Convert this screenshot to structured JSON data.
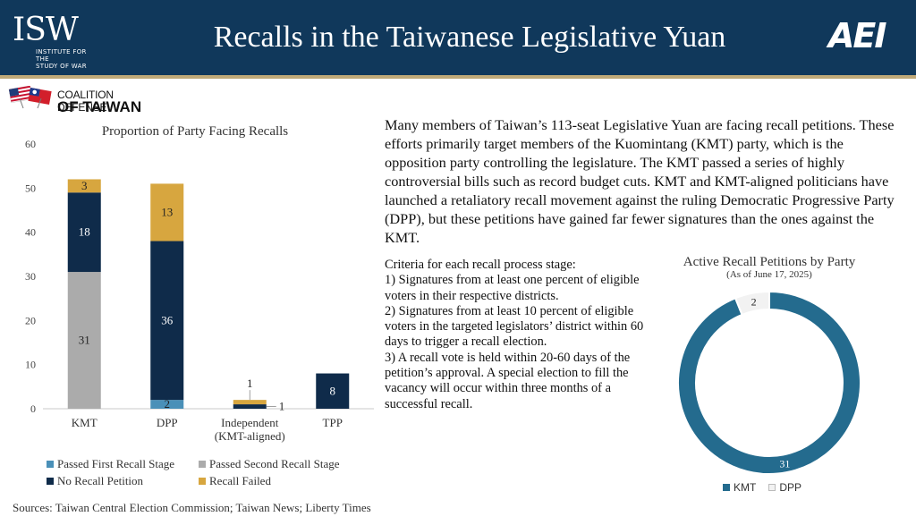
{
  "header": {
    "title": "Recalls in the Taiwanese Legislative Yuan",
    "left_logo": {
      "word": "ISW",
      "sub_line1": "INSTITUTE FOR THE",
      "sub_line2": "STUDY OF WAR"
    },
    "right_logo": "AEI",
    "background": "#10385b",
    "rule_color": "#bfa978"
  },
  "coalition_logo": {
    "line1": "COALITION DEFENSE",
    "line2": "OF TAIWAN"
  },
  "intro_text": "Many members of  Taiwan’s 113-seat Legislative Yuan are facing recall petitions. These efforts primarily target members of the Kuomintang (KMT) party, which is the opposition party controlling the legislature. The KMT passed a series of highly controversial bills such as record budget cuts. KMT and KMT-aligned politicians have launched a retaliatory recall movement against the ruling Democratic Progressive Party (DPP), but these petitions have gained far fewer signatures than the ones against the KMT.",
  "criteria": {
    "heading": "Criteria for each recall process stage:",
    "items": [
      "1) Signatures from at least one percent of eligible voters in their respective districts.",
      "2) Signatures from at least 10 percent of eligible voters in the targeted legislators’ district within 60 days to trigger a recall election.",
      "3) A recall vote is held within 20-60 days of the petition’s approval. A special election to fill the vacancy will occur within three months of a successful recall."
    ]
  },
  "sources": "Sources: Taiwan Central Election Commission; Taiwan News; Liberty Times",
  "chart_data": [
    {
      "type": "bar",
      "stacked": true,
      "title": "Proportion of Party Facing Recalls",
      "categories": [
        "KMT",
        "DPP",
        "Independent (KMT-aligned)",
        "TPP"
      ],
      "category_labels": [
        [
          "KMT"
        ],
        [
          "DPP"
        ],
        [
          "Independent",
          "(KMT-aligned)"
        ],
        [
          "TPP"
        ]
      ],
      "ylim": [
        0,
        60
      ],
      "yticks": [
        0,
        10,
        20,
        30,
        40,
        50,
        60
      ],
      "grid": false,
      "legend_position": "bottom",
      "series": [
        {
          "name": "Passed First Recall Stage",
          "color": "#4a90b8",
          "values": [
            0,
            2,
            0,
            0
          ]
        },
        {
          "name": "Passed Second Recall Stage",
          "color": "#ababab",
          "values": [
            31,
            0,
            0,
            0
          ]
        },
        {
          "name": "No Recall Petition",
          "color": "#0f2b4a",
          "values": [
            18,
            36,
            1,
            8
          ]
        },
        {
          "name": "Recall Failed",
          "color": "#d7a63f",
          "values": [
            3,
            13,
            1,
            0
          ]
        }
      ],
      "data_labels": [
        {
          "category": "KMT",
          "series": "Passed Second Recall Stage",
          "text": "31"
        },
        {
          "category": "KMT",
          "series": "No Recall Petition",
          "text": "18"
        },
        {
          "category": "KMT",
          "series": "Recall Failed",
          "text": "3"
        },
        {
          "category": "DPP",
          "series": "Passed First Recall Stage",
          "text": "2"
        },
        {
          "category": "DPP",
          "series": "No Recall Petition",
          "text": "36"
        },
        {
          "category": "DPP",
          "series": "Recall Failed",
          "text": "13"
        },
        {
          "category": "Independent (KMT-aligned)",
          "series": "No Recall Petition",
          "text": "1",
          "position": "right"
        },
        {
          "category": "Independent (KMT-aligned)",
          "series": "Recall Failed",
          "text": "1",
          "position": "above"
        },
        {
          "category": "TPP",
          "series": "No Recall Petition",
          "text": "8"
        }
      ]
    },
    {
      "type": "pie",
      "donut": true,
      "title": "Active Recall Petitions by Party",
      "subtitle": "(As of June 17, 2025)",
      "legend_position": "bottom",
      "slices": [
        {
          "label": "KMT",
          "value": 31,
          "color": "#246b8e"
        },
        {
          "label": "DPP",
          "value": 2,
          "color": "#f2f2f2"
        }
      ]
    }
  ]
}
